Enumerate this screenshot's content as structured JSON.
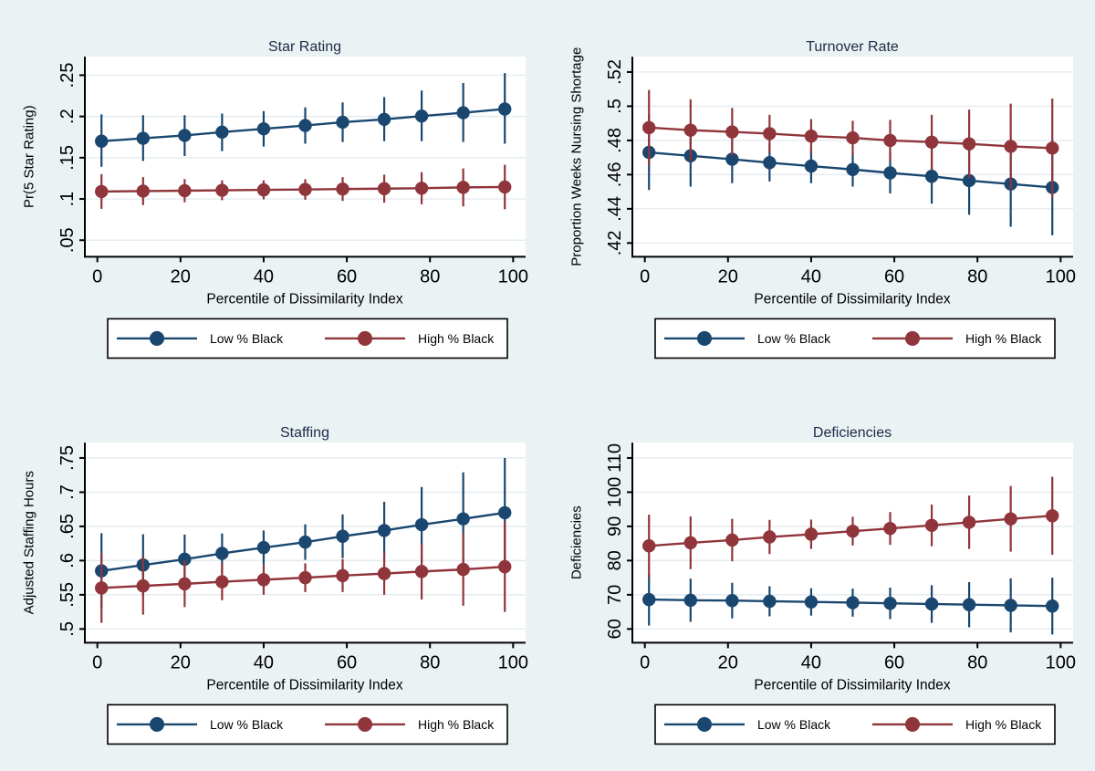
{
  "figure": {
    "colors": {
      "background": "#EAF2F3",
      "plot_background": "#FFFFFF",
      "grid": "#E3ECEF",
      "axis": "#000000",
      "tick_label": "#000000",
      "title": "#1E2A4A",
      "navy": "#1A476F",
      "maroon": "#90353B",
      "legend_border": "#000000",
      "legend_background": "#FFFFFF"
    },
    "legend": {
      "items": [
        {
          "label": "Low % Black",
          "color": "#1A476F",
          "symbol": "line-with-circle-marker"
        },
        {
          "label": "High % Black",
          "color": "#90353B",
          "symbol": "line-with-circle-marker"
        }
      ],
      "position": "bottom"
    }
  },
  "chart_data": [
    {
      "type": "line",
      "title": "Star Rating",
      "ylabel": "Pr(5 Star Rating)",
      "xlabel": "Percentile of Dissimilarity Index",
      "grid": true,
      "error_bars": true,
      "legend_position": "bottom",
      "x": [
        1,
        11,
        21,
        30,
        40,
        50,
        59,
        69,
        78,
        88,
        98
      ],
      "xticks": [
        0,
        20,
        40,
        60,
        80,
        100
      ],
      "xtick_labels": [
        "0",
        "20",
        "40",
        "60",
        "80",
        "100"
      ],
      "xlim": [
        -3,
        103
      ],
      "yticks": [
        0.05,
        0.1,
        0.15,
        0.2,
        0.25
      ],
      "ytick_labels": [
        ".05",
        ".1",
        ".15",
        ".2",
        ".25"
      ],
      "ylim": [
        0.03,
        0.2725
      ],
      "series": [
        {
          "name": "Low % Black",
          "color": "#1A476F",
          "values": [
            0.17,
            0.1735,
            0.177,
            0.181,
            0.185,
            0.189,
            0.193,
            0.1965,
            0.2005,
            0.2045,
            0.209
          ],
          "ci_low": [
            0.139,
            0.146,
            0.152,
            0.158,
            0.1635,
            0.167,
            0.169,
            0.17,
            0.17,
            0.169,
            0.167
          ],
          "ci_high": [
            0.2025,
            0.2015,
            0.2015,
            0.2035,
            0.2065,
            0.211,
            0.217,
            0.2235,
            0.2315,
            0.2405,
            0.2525
          ]
        },
        {
          "name": "High % Black",
          "color": "#90353B",
          "values": [
            0.109,
            0.1095,
            0.11,
            0.1105,
            0.111,
            0.1115,
            0.112,
            0.1125,
            0.113,
            0.114,
            0.1145
          ],
          "ci_low": [
            0.088,
            0.0925,
            0.096,
            0.0985,
            0.0995,
            0.099,
            0.0975,
            0.0955,
            0.0935,
            0.091,
            0.0875
          ],
          "ci_high": [
            0.13,
            0.1265,
            0.124,
            0.1225,
            0.1225,
            0.124,
            0.1265,
            0.1295,
            0.1325,
            0.137,
            0.1415
          ]
        }
      ]
    },
    {
      "type": "line",
      "title": "Turnover Rate",
      "ylabel": "Proportion Weeks Nursing Shortage",
      "xlabel": "Percentile of Dissimilarity Index",
      "grid": true,
      "error_bars": true,
      "legend_position": "bottom",
      "x": [
        1,
        11,
        21,
        30,
        40,
        50,
        59,
        69,
        78,
        88,
        98
      ],
      "xticks": [
        0,
        20,
        40,
        60,
        80,
        100
      ],
      "xtick_labels": [
        "0",
        "20",
        "40",
        "60",
        "80",
        "100"
      ],
      "xlim": [
        -3,
        103
      ],
      "yticks": [
        0.42,
        0.44,
        0.46,
        0.48,
        0.5,
        0.52
      ],
      "ytick_labels": [
        ".42",
        ".44",
        ".46",
        ".48",
        ".5",
        ".52"
      ],
      "ylim": [
        0.412,
        0.529
      ],
      "series": [
        {
          "name": "Low % Black",
          "color": "#1A476F",
          "values": [
            0.473,
            0.471,
            0.469,
            0.467,
            0.465,
            0.463,
            0.461,
            0.459,
            0.4565,
            0.4545,
            0.4525
          ],
          "ci_low": [
            0.451,
            0.453,
            0.455,
            0.456,
            0.455,
            0.453,
            0.449,
            0.443,
            0.4365,
            0.4295,
            0.4245
          ],
          "ci_high": [
            0.495,
            0.489,
            0.483,
            0.478,
            0.475,
            0.473,
            0.473,
            0.475,
            0.4765,
            0.4795,
            0.4805
          ]
        },
        {
          "name": "High % Black",
          "color": "#90353B",
          "values": [
            0.4875,
            0.486,
            0.485,
            0.484,
            0.4825,
            0.4815,
            0.48,
            0.479,
            0.478,
            0.4765,
            0.4755
          ],
          "ci_low": [
            0.4655,
            0.468,
            0.471,
            0.473,
            0.4725,
            0.4715,
            0.468,
            0.463,
            0.458,
            0.4515,
            0.4465
          ],
          "ci_high": [
            0.5095,
            0.504,
            0.499,
            0.495,
            0.4925,
            0.4915,
            0.492,
            0.495,
            0.498,
            0.5015,
            0.5045
          ]
        }
      ]
    },
    {
      "type": "line",
      "title": "Staffing",
      "ylabel": "Adjusted Staffing Hours",
      "xlabel": "Percentile of Dissimilarity Index",
      "grid": true,
      "error_bars": true,
      "legend_position": "bottom",
      "x": [
        1,
        11,
        21,
        30,
        40,
        50,
        59,
        69,
        78,
        88,
        98
      ],
      "xticks": [
        0,
        20,
        40,
        60,
        80,
        100
      ],
      "xtick_labels": [
        "0",
        "20",
        "40",
        "60",
        "80",
        "100"
      ],
      "xlim": [
        -3,
        103
      ],
      "yticks": [
        0.5,
        0.55,
        0.6,
        0.65,
        0.7,
        0.75
      ],
      "ytick_labels": [
        ".5",
        ".55",
        ".6",
        ".65",
        ".7",
        ".75"
      ],
      "ylim": [
        0.48,
        0.7725
      ],
      "series": [
        {
          "name": "Low % Black",
          "color": "#1A476F",
          "values": [
            0.585,
            0.5935,
            0.602,
            0.6105,
            0.619,
            0.627,
            0.6355,
            0.644,
            0.6525,
            0.661,
            0.67
          ],
          "ci_low": [
            0.53,
            0.5485,
            0.566,
            0.5815,
            0.594,
            0.601,
            0.6035,
            0.602,
            0.5975,
            0.593,
            0.59
          ],
          "ci_high": [
            0.64,
            0.6385,
            0.638,
            0.6395,
            0.644,
            0.653,
            0.6675,
            0.686,
            0.7075,
            0.729,
            0.75
          ]
        },
        {
          "name": "High % Black",
          "color": "#90353B",
          "values": [
            0.56,
            0.563,
            0.566,
            0.569,
            0.572,
            0.575,
            0.578,
            0.581,
            0.584,
            0.587,
            0.591
          ],
          "ci_low": [
            0.509,
            0.521,
            0.532,
            0.542,
            0.55,
            0.554,
            0.554,
            0.55,
            0.543,
            0.534,
            0.525
          ],
          "ci_high": [
            0.611,
            0.605,
            0.6,
            0.596,
            0.594,
            0.596,
            0.602,
            0.612,
            0.625,
            0.64,
            0.657
          ]
        }
      ]
    },
    {
      "type": "line",
      "title": "Deficiencies",
      "ylabel": "Deficiencies",
      "xlabel": "Percentile of Dissimilarity Index",
      "grid": true,
      "error_bars": true,
      "legend_position": "bottom",
      "x": [
        1,
        11,
        21,
        30,
        40,
        50,
        59,
        69,
        78,
        88,
        98
      ],
      "xticks": [
        0,
        20,
        40,
        60,
        80,
        100
      ],
      "xtick_labels": [
        "0",
        "20",
        "40",
        "60",
        "80",
        "100"
      ],
      "xlim": [
        -3,
        103
      ],
      "yticks": [
        60,
        70,
        80,
        90,
        100,
        110
      ],
      "ytick_labels": [
        "60",
        "70",
        "80",
        "90",
        "100",
        "110"
      ],
      "ylim": [
        56,
        114.5
      ],
      "series": [
        {
          "name": "Low % Black",
          "color": "#1A476F",
          "values": [
            68.6,
            68.4,
            68.3,
            68.1,
            67.9,
            67.7,
            67.5,
            67.3,
            67.1,
            66.9,
            66.7
          ],
          "ci_low": [
            61.0,
            62.1,
            63.1,
            63.7,
            63.9,
            63.6,
            62.9,
            61.8,
            60.5,
            59.0,
            58.4
          ],
          "ci_high": [
            76.2,
            74.7,
            73.5,
            72.5,
            71.9,
            71.8,
            72.1,
            72.8,
            73.7,
            74.8,
            75.0
          ]
        },
        {
          "name": "High % Black",
          "color": "#90353B",
          "values": [
            84.3,
            85.2,
            86.0,
            86.9,
            87.7,
            88.6,
            89.4,
            90.3,
            91.2,
            92.2,
            93.1
          ],
          "ci_low": [
            75.2,
            77.5,
            79.8,
            81.9,
            83.4,
            84.4,
            84.6,
            84.2,
            83.4,
            82.6,
            81.7
          ],
          "ci_high": [
            93.4,
            92.9,
            92.2,
            91.9,
            92.0,
            92.8,
            94.2,
            96.4,
            99.0,
            101.8,
            104.5
          ]
        }
      ]
    }
  ]
}
